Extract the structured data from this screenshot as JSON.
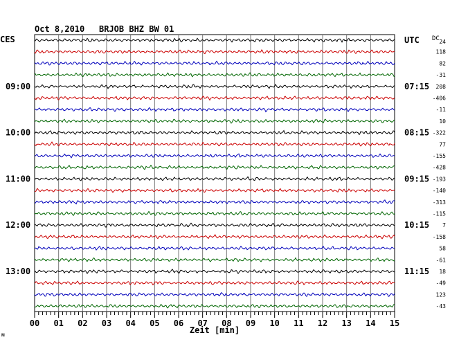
{
  "title": {
    "date": "Oct 8,2010",
    "station": "BRJOB BHZ BW 01"
  },
  "left_axis_label": "CES",
  "right_axis_label": "UTC",
  "dc_label": "DC",
  "xlabel": "Zeit [min]",
  "corner_mark": "ᴍ",
  "chart_data": {
    "type": "line",
    "title": "Oct 8,2010  BRJOB BHZ BW 01",
    "xlabel": "Zeit [min]",
    "xlim": [
      0,
      15
    ],
    "x_ticks": [
      "00",
      "01",
      "02",
      "03",
      "04",
      "05",
      "06",
      "07",
      "08",
      "09",
      "10",
      "11",
      "12",
      "13",
      "14",
      "15"
    ],
    "grid": true,
    "trace_minutes": 15,
    "trace_colors": [
      "#000000",
      "#cc0000",
      "#0000bb",
      "#006600"
    ],
    "left_time_labels": [
      {
        "trace_index": 4,
        "label": "09:00"
      },
      {
        "trace_index": 8,
        "label": "10:00"
      },
      {
        "trace_index": 12,
        "label": "11:00"
      },
      {
        "trace_index": 16,
        "label": "12:00"
      },
      {
        "trace_index": 20,
        "label": "13:00"
      }
    ],
    "right_time_labels": [
      {
        "trace_index": 0,
        "label": "UTC"
      },
      {
        "trace_index": 4,
        "label": "07:15"
      },
      {
        "trace_index": 8,
        "label": "08:15"
      },
      {
        "trace_index": 12,
        "label": "09:15"
      },
      {
        "trace_index": 16,
        "label": "10:15"
      },
      {
        "trace_index": 20,
        "label": "11:15"
      }
    ],
    "dc_offsets": [
      "24",
      "118",
      "82",
      "-31",
      "208",
      "-406",
      "-11",
      "10",
      "-322",
      "77",
      "-155",
      "-428",
      "-193",
      "-140",
      "-313",
      "-115",
      "7",
      "-158",
      "58",
      "-61",
      "18",
      "-49",
      "123",
      "-43"
    ]
  }
}
